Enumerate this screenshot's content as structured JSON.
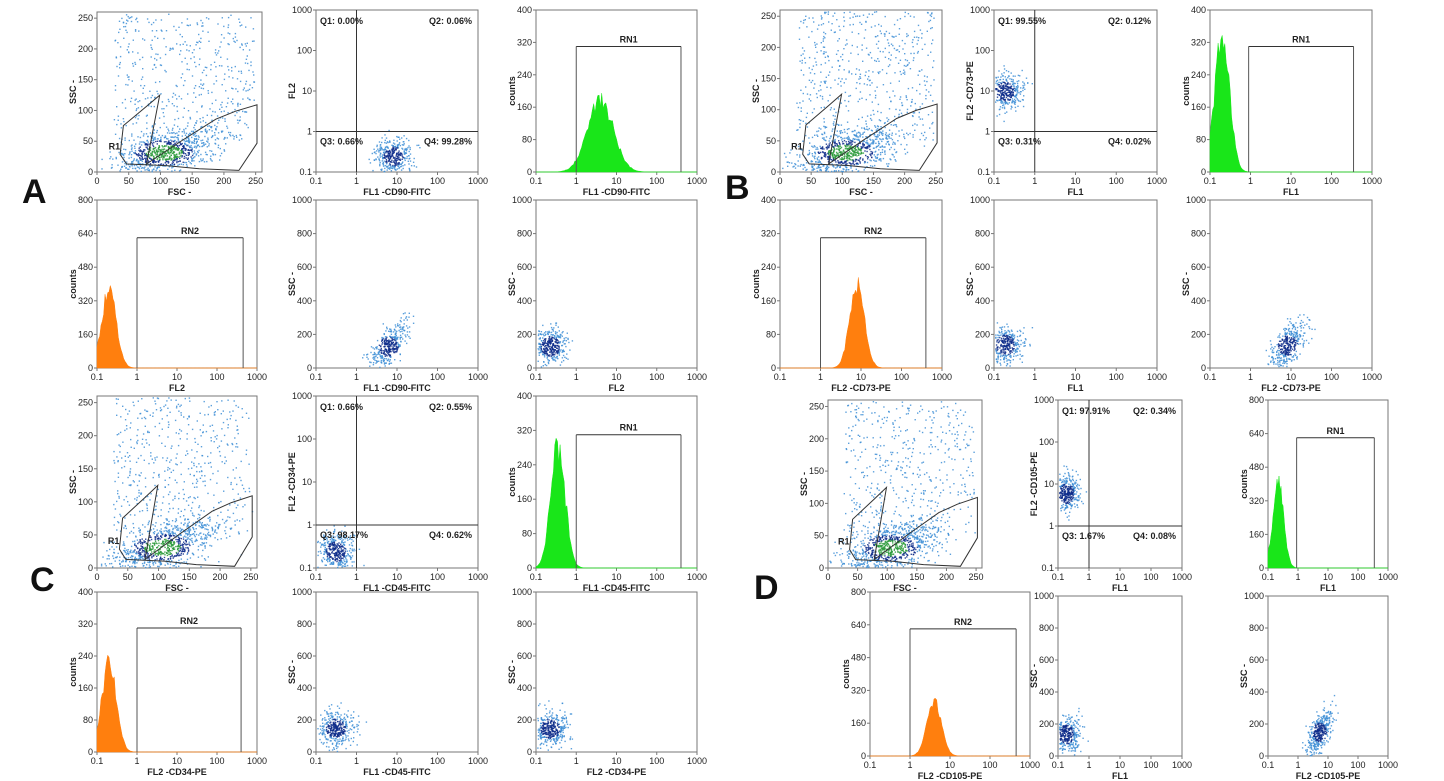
{
  "panel_labels": [
    "A",
    "B",
    "C",
    "D"
  ],
  "colors": {
    "scatter": "#3f8fd6",
    "scatter_dense": "#0d2c8a",
    "scatter_core": "#2a9a3a",
    "histogram_green": "#19e619",
    "histogram_orange": "#ff7f0e",
    "axis": "#777777"
  },
  "chart_data": [
    {
      "type": "scatter",
      "panel": "A",
      "x_ticks": [
        "0",
        "50",
        "100",
        "150",
        "200",
        "250"
      ],
      "y_ticks": [
        "0",
        "50",
        "100",
        "150",
        "200",
        "250"
      ],
      "xlim": [
        0,
        260
      ],
      "ylim": [
        0,
        260
      ],
      "xlabel": "FSC -",
      "ylabel": "SSC -",
      "gate_label": "R1",
      "cluster": {
        "x": 105,
        "y": 32
      }
    },
    {
      "type": "scatter",
      "panel": "A",
      "x_scale": "log",
      "y_scale": "log",
      "x_ticks": [
        "0.1",
        "1",
        "10",
        "100",
        "1000"
      ],
      "y_ticks": [
        "0.1",
        "1",
        "10",
        "100",
        "1000"
      ],
      "xlim": [
        0.1,
        1000
      ],
      "ylim": [
        0.1,
        1000
      ],
      "xlabel": "FL1 -CD90-FITC",
      "ylabel": "FL2",
      "quadrants": {
        "divider_x": 1,
        "divider_y": 1,
        "Q1": "Q1: 0.00%",
        "Q2": "Q2: 0.06%",
        "Q3": "Q3: 0.66%",
        "Q4": "Q4: 99.28%"
      },
      "cluster": {
        "x": 8,
        "y": 0.25
      }
    },
    {
      "type": "histogram",
      "panel": "A",
      "color": "green",
      "x_scale": "log",
      "x_ticks": [
        "0.1",
        "1",
        "10",
        "100",
        "1000"
      ],
      "y_ticks": [
        "0",
        "80",
        "160",
        "240",
        "320",
        "400"
      ],
      "xlim": [
        0.1,
        1000
      ],
      "ylim": [
        0,
        400
      ],
      "xlabel": "FL1 -CD90-FITC",
      "ylabel": "counts",
      "gate": {
        "label": "RN1",
        "from": 1,
        "to": 400,
        "level": 310
      },
      "peak": {
        "x": 4,
        "height": 175
      }
    },
    {
      "type": "scatter",
      "panel": "B",
      "x_ticks": [
        "0",
        "50",
        "100",
        "150",
        "200",
        "250"
      ],
      "y_ticks": [
        "0",
        "50",
        "100",
        "150",
        "200",
        "250"
      ],
      "xlim": [
        0,
        260
      ],
      "ylim": [
        0,
        260
      ],
      "xlabel": "FSC -",
      "ylabel": "SSC -",
      "gate_label": "R1",
      "cluster": {
        "x": 105,
        "y": 32
      }
    },
    {
      "type": "scatter",
      "panel": "B",
      "x_scale": "log",
      "y_scale": "log",
      "x_ticks": [
        "0.1",
        "1",
        "10",
        "100",
        "1000"
      ],
      "y_ticks": [
        "0.1",
        "1",
        "10",
        "100",
        "1000"
      ],
      "xlim": [
        0.1,
        1000
      ],
      "ylim": [
        0.1,
        1000
      ],
      "xlabel": "FL1",
      "ylabel": "FL2 -CD73-PE",
      "quadrants": {
        "divider_x": 1,
        "divider_y": 1,
        "Q1": "Q1: 99.55%",
        "Q2": "Q2: 0.12%",
        "Q3": "Q3: 0.31%",
        "Q4": "Q4: 0.02%"
      },
      "cluster": {
        "x": 0.18,
        "y": 10
      }
    },
    {
      "type": "histogram",
      "panel": "B",
      "color": "green",
      "x_scale": "log",
      "x_ticks": [
        "0.1",
        "1",
        "10",
        "100",
        "1000"
      ],
      "y_ticks": [
        "0",
        "80",
        "160",
        "240",
        "320",
        "400"
      ],
      "xlim": [
        0.1,
        1000
      ],
      "ylim": [
        0,
        400
      ],
      "xlabel": "FL1",
      "ylabel": "counts",
      "gate": {
        "label": "RN1",
        "from": 0.9,
        "to": 350,
        "level": 310
      },
      "peak": {
        "x": 0.2,
        "height": 340
      }
    },
    {
      "type": "histogram",
      "panel": "A",
      "color": "orange",
      "x_scale": "log",
      "x_ticks": [
        "0.1",
        "1",
        "10",
        "100",
        "1000"
      ],
      "y_ticks": [
        "0",
        "160",
        "320",
        "480",
        "640",
        "800"
      ],
      "xlim": [
        0.1,
        1000
      ],
      "ylim": [
        0,
        800
      ],
      "xlabel": "FL2",
      "ylabel": "counts",
      "gate": {
        "label": "RN2",
        "from": 1,
        "to": 450,
        "level": 620
      },
      "peak": {
        "x": 0.2,
        "height": 380
      }
    },
    {
      "type": "scatter",
      "panel": "A",
      "x_scale": "log",
      "x_ticks": [
        "0.1",
        "1",
        "10",
        "100",
        "1000"
      ],
      "y_ticks": [
        "0",
        "200",
        "400",
        "600",
        "800",
        "1000"
      ],
      "xlim": [
        0.1,
        1000
      ],
      "ylim": [
        0,
        1000
      ],
      "xlabel": "FL1 -CD90-FITC",
      "ylabel": "SSC -",
      "cluster": {
        "x": 6,
        "y": 130
      }
    },
    {
      "type": "scatter",
      "panel": "A",
      "x_scale": "log",
      "x_ticks": [
        "0.1",
        "1",
        "10",
        "100",
        "1000"
      ],
      "y_ticks": [
        "0",
        "200",
        "400",
        "600",
        "800",
        "1000"
      ],
      "xlim": [
        0.1,
        1000
      ],
      "ylim": [
        0,
        1000
      ],
      "xlabel": "FL2",
      "ylabel": "SSC -",
      "cluster": {
        "x": 0.22,
        "y": 130
      }
    },
    {
      "type": "histogram",
      "panel": "B",
      "color": "orange",
      "x_scale": "log",
      "x_ticks": [
        "0.1",
        "1",
        "10",
        "100",
        "1000"
      ],
      "y_ticks": [
        "0",
        "80",
        "160",
        "240",
        "320",
        "400"
      ],
      "xlim": [
        0.1,
        1000
      ],
      "ylim": [
        0,
        400
      ],
      "xlabel": "FL2 -CD73-PE",
      "ylabel": "counts",
      "gate": {
        "label": "RN2",
        "from": 1,
        "to": 400,
        "level": 310
      },
      "peak": {
        "x": 8,
        "height": 200
      }
    },
    {
      "type": "scatter",
      "panel": "B",
      "x_scale": "log",
      "x_ticks": [
        "0.1",
        "1",
        "10",
        "100",
        "1000"
      ],
      "y_ticks": [
        "0",
        "200",
        "400",
        "600",
        "800",
        "1000"
      ],
      "xlim": [
        0.1,
        1000
      ],
      "ylim": [
        0,
        1000
      ],
      "xlabel": "FL1",
      "ylabel": "SSC -",
      "cluster": {
        "x": 0.18,
        "y": 140
      }
    },
    {
      "type": "scatter",
      "panel": "B",
      "x_scale": "log",
      "x_ticks": [
        "0.1",
        "1",
        "10",
        "100",
        "1000"
      ],
      "y_ticks": [
        "0",
        "200",
        "400",
        "600",
        "800",
        "1000"
      ],
      "xlim": [
        0.1,
        1000
      ],
      "ylim": [
        0,
        1000
      ],
      "xlabel": "FL2 -CD73-PE",
      "ylabel": "SSC -",
      "cluster": {
        "x": 8,
        "y": 140
      }
    },
    {
      "type": "scatter",
      "panel": "C",
      "x_ticks": [
        "0",
        "50",
        "100",
        "150",
        "200",
        "250"
      ],
      "y_ticks": [
        "0",
        "50",
        "100",
        "150",
        "200",
        "250"
      ],
      "xlim": [
        0,
        260
      ],
      "ylim": [
        0,
        260
      ],
      "xlabel": "FSC -",
      "ylabel": "SSC -",
      "gate_label": "R1",
      "cluster": {
        "x": 105,
        "y": 32
      }
    },
    {
      "type": "scatter",
      "panel": "C",
      "x_scale": "log",
      "y_scale": "log",
      "x_ticks": [
        "0.1",
        "1",
        "10",
        "100",
        "1000"
      ],
      "y_ticks": [
        "0.1",
        "1",
        "10",
        "100",
        "1000"
      ],
      "xlim": [
        0.1,
        1000
      ],
      "ylim": [
        0.1,
        1000
      ],
      "xlabel": "FL1 -CD45-FITC",
      "ylabel": "FL2 -CD34-PE",
      "quadrants": {
        "divider_x": 1,
        "divider_y": 1,
        "Q1": "Q1: 0.66%",
        "Q2": "Q2: 0.55%",
        "Q3": "Q3: 98.17%",
        "Q4": "Q4: 0.62%"
      },
      "cluster": {
        "x": 0.3,
        "y": 0.25
      }
    },
    {
      "type": "histogram",
      "panel": "C",
      "color": "green",
      "x_scale": "log",
      "x_ticks": [
        "0.1",
        "1",
        "10",
        "100",
        "1000"
      ],
      "y_ticks": [
        "0",
        "80",
        "160",
        "240",
        "320",
        "400"
      ],
      "xlim": [
        0.1,
        1000
      ],
      "ylim": [
        0,
        400
      ],
      "xlabel": "FL1 -CD45-FITC",
      "ylabel": "counts",
      "gate": {
        "label": "RN1",
        "from": 1,
        "to": 400,
        "level": 310
      },
      "peak": {
        "x": 0.35,
        "height": 280
      }
    },
    {
      "type": "scatter",
      "panel": "D",
      "x_ticks": [
        "0",
        "50",
        "100",
        "150",
        "200",
        "250"
      ],
      "y_ticks": [
        "0",
        "50",
        "100",
        "150",
        "200",
        "250"
      ],
      "xlim": [
        0,
        260
      ],
      "ylim": [
        0,
        260
      ],
      "xlabel": "FSC -",
      "ylabel": "SSC -",
      "gate_label": "R1",
      "cluster": {
        "x": 105,
        "y": 32
      }
    },
    {
      "type": "scatter",
      "panel": "D",
      "x_scale": "log",
      "y_scale": "log",
      "x_ticks": [
        "0.1",
        "1",
        "10",
        "100",
        "1000"
      ],
      "y_ticks": [
        "0.1",
        "1",
        "10",
        "100",
        "1000"
      ],
      "xlim": [
        0.1,
        1000
      ],
      "ylim": [
        0.1,
        1000
      ],
      "xlabel": "FL1",
      "ylabel": "FL2 -CD105-PE",
      "quadrants": {
        "divider_x": 1,
        "divider_y": 1,
        "Q1": "Q1: 97.91%",
        "Q2": "Q2: 0.34%",
        "Q3": "Q3: 1.67%",
        "Q4": "Q4: 0.08%"
      },
      "cluster": {
        "x": 0.18,
        "y": 6
      }
    },
    {
      "type": "histogram",
      "panel": "D",
      "color": "green",
      "x_scale": "log",
      "x_ticks": [
        "0.1",
        "1",
        "10",
        "100",
        "1000"
      ],
      "y_ticks": [
        "0",
        "160",
        "320",
        "480",
        "640",
        "800"
      ],
      "xlim": [
        0.1,
        1000
      ],
      "ylim": [
        0,
        800
      ],
      "xlabel": "FL1",
      "ylabel": "counts",
      "gate": {
        "label": "RN1",
        "from": 0.9,
        "to": 350,
        "level": 620
      },
      "peak": {
        "x": 0.22,
        "height": 400
      }
    },
    {
      "type": "histogram",
      "panel": "C",
      "color": "orange",
      "x_scale": "log",
      "x_ticks": [
        "0.1",
        "1",
        "10",
        "100",
        "1000"
      ],
      "y_ticks": [
        "0",
        "80",
        "160",
        "240",
        "320",
        "400"
      ],
      "xlim": [
        0.1,
        1000
      ],
      "ylim": [
        0,
        400
      ],
      "xlabel": "FL2 -CD34-PE",
      "ylabel": "counts",
      "gate": {
        "label": "RN2",
        "from": 1,
        "to": 400,
        "level": 310
      },
      "peak": {
        "x": 0.2,
        "height": 220
      }
    },
    {
      "type": "scatter",
      "panel": "C",
      "x_scale": "log",
      "x_ticks": [
        "0.1",
        "1",
        "10",
        "100",
        "1000"
      ],
      "y_ticks": [
        "0",
        "200",
        "400",
        "600",
        "800",
        "1000"
      ],
      "xlim": [
        0.1,
        1000
      ],
      "ylim": [
        0,
        1000
      ],
      "xlabel": "FL1 -CD45-FITC",
      "ylabel": "SSC -",
      "cluster": {
        "x": 0.3,
        "y": 150
      }
    },
    {
      "type": "scatter",
      "panel": "C",
      "x_scale": "log",
      "x_ticks": [
        "0.1",
        "1",
        "10",
        "100",
        "1000"
      ],
      "y_ticks": [
        "0",
        "200",
        "400",
        "600",
        "800",
        "1000"
      ],
      "xlim": [
        0.1,
        1000
      ],
      "ylim": [
        0,
        1000
      ],
      "xlabel": "FL2 -CD34-PE",
      "ylabel": "SSC -",
      "cluster": {
        "x": 0.22,
        "y": 150
      }
    },
    {
      "type": "histogram",
      "panel": "D",
      "color": "orange",
      "x_scale": "log",
      "x_ticks": [
        "0.1",
        "1",
        "10",
        "100",
        "1000"
      ],
      "y_ticks": [
        "0",
        "160",
        "320",
        "480",
        "640",
        "800"
      ],
      "xlim": [
        0.1,
        1000
      ],
      "ylim": [
        0,
        800
      ],
      "xlabel": "FL2 -CD105-PE",
      "ylabel": "counts",
      "gate": {
        "label": "RN2",
        "from": 1,
        "to": 450,
        "level": 620
      },
      "peak": {
        "x": 4,
        "height": 260
      }
    },
    {
      "type": "scatter",
      "panel": "D",
      "x_scale": "log",
      "x_ticks": [
        "0.1",
        "1",
        "10",
        "100",
        "1000"
      ],
      "y_ticks": [
        "0",
        "200",
        "400",
        "600",
        "800",
        "1000"
      ],
      "xlim": [
        0.1,
        1000
      ],
      "ylim": [
        0,
        1000
      ],
      "xlabel": "FL1",
      "ylabel": "SSC -",
      "cluster": {
        "x": 0.18,
        "y": 140
      }
    },
    {
      "type": "scatter",
      "panel": "D",
      "x_scale": "log",
      "x_ticks": [
        "0.1",
        "1",
        "10",
        "100",
        "1000"
      ],
      "y_ticks": [
        "0",
        "200",
        "400",
        "600",
        "800",
        "1000"
      ],
      "xlim": [
        0.1,
        1000
      ],
      "ylim": [
        0,
        1000
      ],
      "xlabel": "FL2 -CD105-PE",
      "ylabel": "SSC -",
      "cluster": {
        "x": 5,
        "y": 150
      }
    }
  ]
}
